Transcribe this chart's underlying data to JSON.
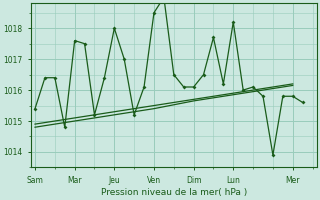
{
  "bg_color": "#cce8e0",
  "grid_color": "#99ccbb",
  "line_color": "#1a5c1a",
  "xlabel": "Pression niveau de la mer( hPa )",
  "ylim": [
    1013.5,
    1018.8
  ],
  "yticks": [
    1014,
    1015,
    1016,
    1017,
    1018
  ],
  "day_labels": [
    "Sam",
    "Mar",
    "Jeu",
    "Ven",
    "Dim",
    "Lun",
    "Mer"
  ],
  "day_positions": [
    0.0,
    2.0,
    4.0,
    6.0,
    8.0,
    10.0,
    13.0
  ],
  "xlim": [
    -0.2,
    14.2
  ],
  "series1_x": [
    0,
    0.5,
    1.0,
    1.5,
    2.0,
    2.5,
    3.0,
    3.5,
    4.0,
    4.5,
    5.0,
    5.5,
    6.0,
    6.5,
    7.0,
    7.5,
    8.0,
    8.5,
    9.0,
    9.5,
    10.0,
    10.5,
    11.0,
    11.5,
    12.0,
    12.5,
    13.0,
    13.5
  ],
  "series1_y": [
    1015.4,
    1016.4,
    1016.4,
    1014.8,
    1017.6,
    1017.5,
    1015.2,
    1016.4,
    1018.0,
    1017.0,
    1015.2,
    1016.1,
    1018.5,
    1019.0,
    1016.5,
    1016.1,
    1016.1,
    1016.5,
    1017.7,
    1016.2,
    1018.2,
    1016.0,
    1016.1,
    1015.8,
    1013.9,
    1015.8,
    1015.8,
    1015.6
  ],
  "series2_x": [
    0,
    2,
    4,
    6,
    8,
    10,
    13
  ],
  "series2_y": [
    1014.9,
    1015.1,
    1015.3,
    1015.5,
    1015.7,
    1015.9,
    1016.2
  ],
  "series3_x": [
    0,
    2,
    4,
    6,
    8,
    10,
    13
  ],
  "series3_y": [
    1014.8,
    1015.0,
    1015.2,
    1015.4,
    1015.65,
    1015.85,
    1016.15
  ]
}
